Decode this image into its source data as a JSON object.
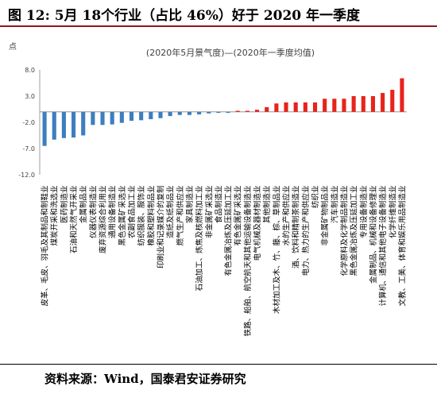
{
  "figure": {
    "title": "图 12:  5月 18个行业（占比 46%）好于 2020 年一季度",
    "source": "资料来源：Wind，国泰君安证券研究"
  },
  "chart_data": {
    "type": "bar",
    "title": "(2020年5月景气度)—(2020年一季度均值)",
    "ylabel": "点",
    "ylim": [
      -12.0,
      8.0
    ],
    "yticks": [
      "8.0",
      "3.0",
      "-2.0",
      "-7.0",
      "-12.0"
    ],
    "colors": {
      "negative": "#3d7ebf",
      "positive": "#e8231b"
    },
    "categories": [
      "皮革、毛皮、羽毛及其制品和制鞋业",
      "煤炭开采和洗选业",
      "医药制造业",
      "石油和天然气开采业",
      "金属制品业",
      "仪器仪表制造业",
      "废弃资源综合利用业",
      "通用设备制造业",
      "黑色金属矿采选业",
      "农副食品加工业",
      "纺织服装、服饰业",
      "橡胶和塑料制品业",
      "印刷业和记录媒介的复制",
      "造纸及纸制品业",
      "燃气生产和供应业",
      "家具制造业",
      "石油加工、炼焦及核燃料加工业",
      "非金属矿采选业",
      "食品制造业",
      "有色金属冶炼及压延加工业",
      "有色金属矿采选业",
      "铁路、船舶、航空航天和其他运输设备制造业",
      "电气机械及器材制造业",
      "其他制造业",
      "木材加工及木、竹、藤、棕、草制品业",
      "水的生产和供应业",
      "酒、饮料和精制茶制造业",
      "电力、热力的生产和供应业",
      "纺织业",
      "非金属矿物制品业",
      "汽车制造业",
      "化学原料及化学制品制造业",
      "黑色金属冶炼及压延加工业",
      "专用设备制造业",
      "金属制品、机械和设备修理业",
      "计算机、通信和其他电子设备制造业",
      "化学纤维制造业",
      "文教、工美、体育和娱乐用品制造业"
    ],
    "values": [
      -6.5,
      -5.3,
      -5.0,
      -4.9,
      -4.5,
      -2.5,
      -2.5,
      -2.4,
      -2.1,
      -1.7,
      -1.6,
      -1.4,
      -1.2,
      -0.8,
      -0.6,
      -0.6,
      -0.5,
      -0.3,
      -0.2,
      -0.2,
      0.2,
      0.2,
      0.4,
      0.9,
      1.6,
      1.8,
      1.8,
      1.8,
      1.8,
      2.5,
      2.5,
      2.5,
      3.0,
      3.0,
      3.0,
      3.6,
      4.2,
      6.4
    ]
  }
}
